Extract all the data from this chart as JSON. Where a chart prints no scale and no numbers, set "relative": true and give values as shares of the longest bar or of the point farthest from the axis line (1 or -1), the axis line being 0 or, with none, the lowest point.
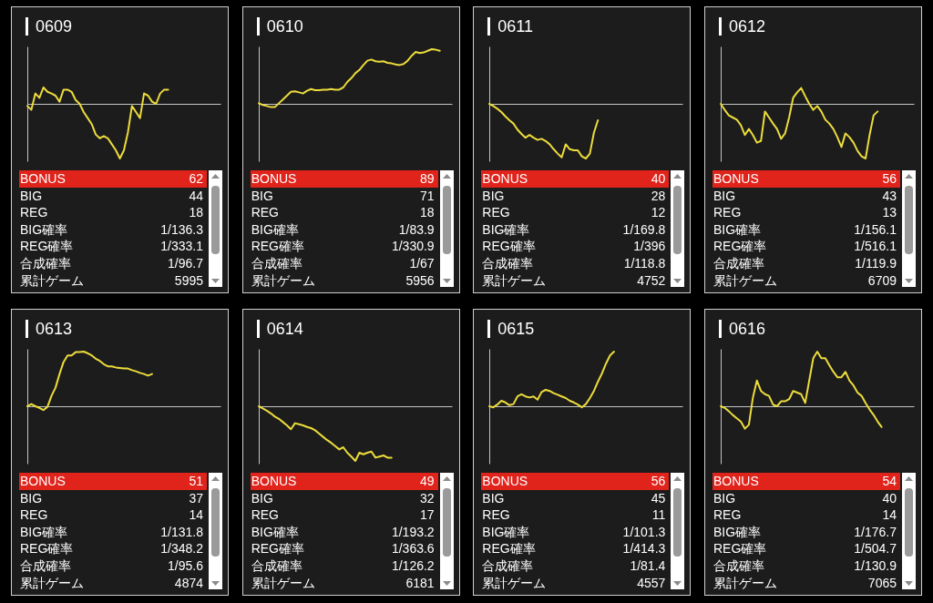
{
  "chart_data": [
    {
      "type": "line",
      "title": "0609",
      "relative": true,
      "categories": [
        null,
        null,
        null,
        null,
        null,
        null,
        null,
        null,
        null,
        null,
        null,
        null,
        null,
        null,
        null,
        null,
        null,
        null,
        null,
        null,
        null,
        null,
        null,
        null,
        null,
        null,
        null,
        null,
        null,
        null,
        null,
        null,
        null,
        null,
        null,
        null,
        null,
        null,
        null,
        null,
        null,
        null,
        null,
        null,
        null,
        null,
        null,
        null,
        null
      ],
      "series": [
        {
          "color": "#ecdc3c",
          "values": [
            -0.04,
            -0.11,
            0.19,
            0.11,
            0.3,
            0.22,
            0.19,
            0.15,
            0.04,
            0.26,
            0.26,
            0.22,
            0.07,
            0,
            -0.15,
            -0.26,
            -0.37,
            -0.56,
            -0.63,
            -0.59,
            -0.63,
            -0.74,
            -0.85,
            -1,
            -0.85,
            -0.52,
            -0.04,
            -0.15,
            -0.26,
            0.19,
            0.15,
            0.04,
            0,
            0.19,
            0.26,
            0.26,
            null,
            null,
            null,
            null,
            null,
            null,
            null,
            null,
            null,
            null,
            null,
            null,
            null
          ]
        }
      ],
      "annotations": [
        "BONUS",
        "62",
        "BIG",
        "44",
        "REG",
        "18",
        "BIG確率",
        "1/136.3",
        "REG確率",
        "1/333.1",
        "合成確率",
        "1/96.7",
        "累計ゲーム",
        "5995"
      ]
    },
    {
      "type": "line",
      "title": "0610",
      "relative": true,
      "categories": [
        null,
        null,
        null,
        null,
        null,
        null,
        null,
        null,
        null,
        null,
        null,
        null,
        null,
        null,
        null,
        null,
        null,
        null,
        null,
        null,
        null,
        null,
        null,
        null,
        null,
        null,
        null,
        null,
        null,
        null,
        null,
        null,
        null,
        null,
        null,
        null,
        null,
        null,
        null,
        null,
        null,
        null,
        null,
        null,
        null,
        null,
        null,
        null,
        null
      ],
      "series": [
        {
          "color": "#ecdc3c",
          "values": [
            0.01,
            -0.02,
            -0.04,
            -0.06,
            -0.06,
            0.01,
            0.08,
            0.15,
            0.22,
            0.23,
            0.21,
            0.19,
            0.24,
            0.27,
            0.25,
            0.25,
            0.26,
            0.26,
            0.27,
            0.26,
            0.26,
            0.3,
            0.4,
            0.47,
            0.56,
            0.62,
            0.71,
            0.79,
            0.81,
            0.78,
            0.77,
            0.78,
            0.75,
            0.74,
            0.72,
            0.71,
            0.73,
            0.79,
            0.88,
            0.95,
            0.93,
            0.94,
            0.97,
            1,
            0.99,
            0.97,
            null,
            null,
            null
          ]
        }
      ],
      "annotations": [
        "BONUS",
        "89",
        "BIG",
        "71",
        "REG",
        "18",
        "BIG確率",
        "1/83.9",
        "REG確率",
        "1/330.9",
        "合成確率",
        "1/67",
        "累計ゲーム",
        "5956"
      ]
    },
    {
      "type": "line",
      "title": "0611",
      "relative": true,
      "categories": [
        null,
        null,
        null,
        null,
        null,
        null,
        null,
        null,
        null,
        null,
        null,
        null,
        null,
        null,
        null,
        null,
        null,
        null,
        null,
        null,
        null,
        null,
        null,
        null,
        null,
        null,
        null,
        null,
        null,
        null,
        null,
        null,
        null,
        null,
        null,
        null,
        null,
        null,
        null,
        null,
        null,
        null,
        null,
        null,
        null,
        null,
        null,
        null,
        null
      ],
      "series": [
        {
          "color": "#ecdc3c",
          "values": [
            0,
            -0.04,
            -0.09,
            -0.15,
            -0.23,
            -0.3,
            -0.36,
            -0.47,
            -0.55,
            -0.62,
            -0.57,
            -0.62,
            -0.66,
            -0.64,
            -0.68,
            -0.74,
            -0.83,
            -0.91,
            -0.98,
            -0.74,
            -0.83,
            -0.85,
            -0.85,
            -0.96,
            -1,
            -0.91,
            -0.53,
            -0.3,
            null,
            null,
            null,
            null,
            null,
            null,
            null,
            null,
            null,
            null,
            null,
            null,
            null,
            null,
            null,
            null,
            null,
            null,
            null,
            null,
            null
          ]
        }
      ],
      "annotations": [
        "BONUS",
        "40",
        "BIG",
        "28",
        "REG",
        "12",
        "BIG確率",
        "1/169.8",
        "REG確率",
        "1/396",
        "合成確率",
        "1/118.8",
        "累計ゲーム",
        "4752"
      ]
    },
    {
      "type": "line",
      "title": "0612",
      "relative": true,
      "categories": [
        null,
        null,
        null,
        null,
        null,
        null,
        null,
        null,
        null,
        null,
        null,
        null,
        null,
        null,
        null,
        null,
        null,
        null,
        null,
        null,
        null,
        null,
        null,
        null,
        null,
        null,
        null,
        null,
        null,
        null,
        null,
        null,
        null,
        null,
        null,
        null,
        null,
        null,
        null,
        null,
        null,
        null,
        null,
        null,
        null,
        null,
        null,
        null,
        null
      ],
      "series": [
        {
          "color": "#ecdc3c",
          "values": [
            0,
            -0.11,
            -0.21,
            -0.25,
            -0.29,
            -0.39,
            -0.57,
            -0.46,
            -0.57,
            -0.71,
            -0.68,
            -0.14,
            -0.25,
            -0.36,
            -0.46,
            -0.64,
            -0.54,
            -0.25,
            0.11,
            0.21,
            0.29,
            0.14,
            0,
            -0.11,
            -0.04,
            -0.14,
            -0.29,
            -0.36,
            -0.46,
            -0.61,
            -0.79,
            -0.54,
            -0.61,
            -0.71,
            -0.86,
            -0.96,
            -1,
            -0.57,
            -0.21,
            -0.14,
            null,
            null,
            null,
            null,
            null,
            null,
            null,
            null,
            null
          ]
        }
      ],
      "annotations": [
        "BONUS",
        "56",
        "BIG",
        "43",
        "REG",
        "13",
        "BIG確率",
        "1/156.1",
        "REG確率",
        "1/516.1",
        "合成確率",
        "1/119.9",
        "累計ゲーム",
        "6709"
      ]
    },
    {
      "type": "line",
      "title": "0613",
      "relative": true,
      "categories": [
        null,
        null,
        null,
        null,
        null,
        null,
        null,
        null,
        null,
        null,
        null,
        null,
        null,
        null,
        null,
        null,
        null,
        null,
        null,
        null,
        null,
        null,
        null,
        null,
        null,
        null,
        null,
        null,
        null,
        null,
        null,
        null,
        null,
        null,
        null,
        null,
        null,
        null,
        null,
        null,
        null,
        null,
        null,
        null,
        null,
        null,
        null,
        null,
        null
      ],
      "series": [
        {
          "color": "#ecdc3c",
          "values": [
            0,
            0.04,
            0,
            -0.03,
            -0.07,
            -0.01,
            0.19,
            0.34,
            0.59,
            0.81,
            0.93,
            0.93,
            0.99,
            0.99,
            1,
            0.97,
            0.93,
            0.87,
            0.83,
            0.77,
            0.73,
            0.73,
            0.71,
            0.7,
            0.69,
            0.69,
            0.66,
            0.64,
            0.61,
            0.59,
            0.56,
            0.59,
            null,
            null,
            null,
            null,
            null,
            null,
            null,
            null,
            null,
            null,
            null,
            null,
            null,
            null,
            null,
            null,
            null
          ]
        }
      ],
      "annotations": [
        "BONUS",
        "51",
        "BIG",
        "37",
        "REG",
        "14",
        "BIG確率",
        "1/131.8",
        "REG確率",
        "1/348.2",
        "合成確率",
        "1/95.6",
        "累計ゲーム",
        "4874"
      ]
    },
    {
      "type": "line",
      "title": "0614",
      "relative": true,
      "categories": [
        null,
        null,
        null,
        null,
        null,
        null,
        null,
        null,
        null,
        null,
        null,
        null,
        null,
        null,
        null,
        null,
        null,
        null,
        null,
        null,
        null,
        null,
        null,
        null,
        null,
        null,
        null,
        null,
        null,
        null,
        null,
        null,
        null,
        null,
        null,
        null,
        null,
        null,
        null,
        null,
        null,
        null,
        null,
        null,
        null,
        null,
        null,
        null,
        null
      ],
      "series": [
        {
          "color": "#ecdc3c",
          "values": [
            0,
            -0.04,
            -0.08,
            -0.13,
            -0.19,
            -0.23,
            -0.29,
            -0.35,
            -0.42,
            -0.31,
            -0.33,
            -0.35,
            -0.38,
            -0.4,
            -0.44,
            -0.5,
            -0.56,
            -0.62,
            -0.67,
            -0.73,
            -0.79,
            -0.75,
            -0.85,
            -0.92,
            -1,
            -0.85,
            -0.88,
            -0.85,
            -0.83,
            -0.94,
            -0.92,
            -0.9,
            -0.94,
            -0.94,
            null,
            null,
            null,
            null,
            null,
            null,
            null,
            null,
            null,
            null,
            null,
            null,
            null,
            null,
            null
          ]
        }
      ],
      "annotations": [
        "BONUS",
        "49",
        "BIG",
        "32",
        "REG",
        "17",
        "BIG確率",
        "1/193.2",
        "REG確率",
        "1/363.6",
        "合成確率",
        "1/126.2",
        "累計ゲーム",
        "6181"
      ]
    },
    {
      "type": "line",
      "title": "0615",
      "relative": true,
      "categories": [
        null,
        null,
        null,
        null,
        null,
        null,
        null,
        null,
        null,
        null,
        null,
        null,
        null,
        null,
        null,
        null,
        null,
        null,
        null,
        null,
        null,
        null,
        null,
        null,
        null,
        null,
        null,
        null,
        null,
        null,
        null,
        null,
        null,
        null,
        null,
        null,
        null,
        null,
        null,
        null,
        null,
        null,
        null,
        null,
        null,
        null,
        null,
        null,
        null
      ],
      "series": [
        {
          "color": "#ecdc3c",
          "values": [
            0,
            -0.02,
            0.03,
            0.1,
            0.07,
            0.02,
            0.04,
            0.18,
            0.22,
            0.18,
            0.16,
            0.18,
            0.12,
            0.26,
            0.3,
            0.28,
            0.24,
            0.21,
            0.18,
            0.15,
            0.1,
            0.07,
            0.03,
            -0.02,
            0.04,
            0.15,
            0.28,
            0.45,
            0.6,
            0.78,
            0.93,
            1,
            null,
            null,
            null,
            null,
            null,
            null,
            null,
            null,
            null,
            null,
            null,
            null,
            null,
            null,
            null,
            null,
            null
          ]
        }
      ],
      "annotations": [
        "BONUS",
        "56",
        "BIG",
        "45",
        "REG",
        "11",
        "BIG確率",
        "1/101.3",
        "REG確率",
        "1/414.3",
        "合成確率",
        "1/81.4",
        "累計ゲーム",
        "4557"
      ]
    },
    {
      "type": "line",
      "title": "0616",
      "relative": true,
      "categories": [
        null,
        null,
        null,
        null,
        null,
        null,
        null,
        null,
        null,
        null,
        null,
        null,
        null,
        null,
        null,
        null,
        null,
        null,
        null,
        null,
        null,
        null,
        null,
        null,
        null,
        null,
        null,
        null,
        null,
        null,
        null,
        null,
        null,
        null,
        null,
        null,
        null,
        null,
        null,
        null,
        null,
        null,
        null,
        null,
        null,
        null,
        null,
        null,
        null
      ],
      "series": [
        {
          "color": "#ecdc3c",
          "values": [
            0,
            -0.03,
            -0.09,
            -0.16,
            -0.22,
            -0.28,
            -0.41,
            -0.34,
            0.16,
            0.47,
            0.28,
            0.22,
            0.19,
            0.03,
            0,
            0.09,
            0.09,
            0.13,
            0.28,
            0.25,
            0.22,
            0.06,
            0.47,
            0.88,
            1,
            0.88,
            0.88,
            0.75,
            0.63,
            0.53,
            0.53,
            0.63,
            0.47,
            0.38,
            0.25,
            0.19,
            0.06,
            -0.06,
            -0.16,
            -0.28,
            -0.38,
            null,
            null,
            null,
            null,
            null,
            null,
            null,
            null
          ]
        }
      ],
      "annotations": [
        "BONUS",
        "54",
        "BIG",
        "40",
        "REG",
        "14",
        "BIG確率",
        "1/176.7",
        "REG確率",
        "1/504.7",
        "合成確率",
        "1/130.9",
        "累計ゲーム",
        "7065"
      ]
    }
  ]
}
